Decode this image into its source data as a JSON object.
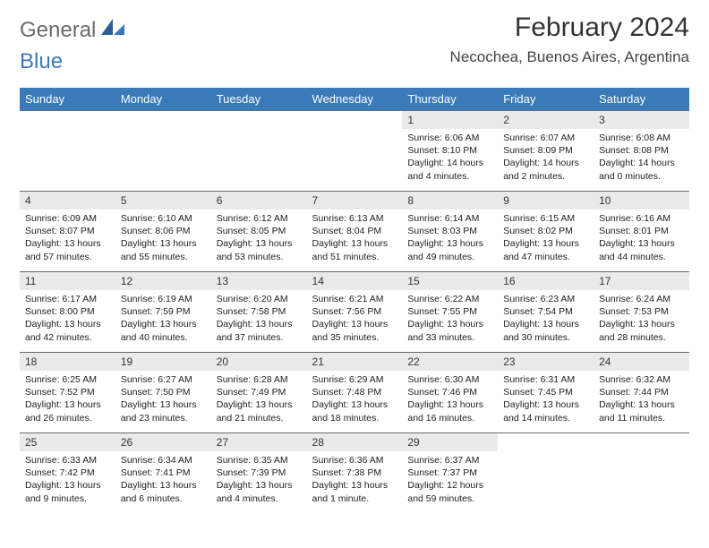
{
  "brand": {
    "part1": "General",
    "part2": "Blue"
  },
  "title": "February 2024",
  "location": "Necochea, Buenos Aires, Argentina",
  "headers": [
    "Sunday",
    "Monday",
    "Tuesday",
    "Wednesday",
    "Thursday",
    "Friday",
    "Saturday"
  ],
  "colors": {
    "header_bg": "#3a7ab8",
    "daynum_bg": "#eaeaea",
    "line": "#6b6b6b"
  },
  "weeks": [
    [
      null,
      null,
      null,
      null,
      {
        "n": "1",
        "sr": "Sunrise: 6:06 AM",
        "ss": "Sunset: 8:10 PM",
        "dl": "Daylight: 14 hours and 4 minutes."
      },
      {
        "n": "2",
        "sr": "Sunrise: 6:07 AM",
        "ss": "Sunset: 8:09 PM",
        "dl": "Daylight: 14 hours and 2 minutes."
      },
      {
        "n": "3",
        "sr": "Sunrise: 6:08 AM",
        "ss": "Sunset: 8:08 PM",
        "dl": "Daylight: 14 hours and 0 minutes."
      }
    ],
    [
      {
        "n": "4",
        "sr": "Sunrise: 6:09 AM",
        "ss": "Sunset: 8:07 PM",
        "dl": "Daylight: 13 hours and 57 minutes."
      },
      {
        "n": "5",
        "sr": "Sunrise: 6:10 AM",
        "ss": "Sunset: 8:06 PM",
        "dl": "Daylight: 13 hours and 55 minutes."
      },
      {
        "n": "6",
        "sr": "Sunrise: 6:12 AM",
        "ss": "Sunset: 8:05 PM",
        "dl": "Daylight: 13 hours and 53 minutes."
      },
      {
        "n": "7",
        "sr": "Sunrise: 6:13 AM",
        "ss": "Sunset: 8:04 PM",
        "dl": "Daylight: 13 hours and 51 minutes."
      },
      {
        "n": "8",
        "sr": "Sunrise: 6:14 AM",
        "ss": "Sunset: 8:03 PM",
        "dl": "Daylight: 13 hours and 49 minutes."
      },
      {
        "n": "9",
        "sr": "Sunrise: 6:15 AM",
        "ss": "Sunset: 8:02 PM",
        "dl": "Daylight: 13 hours and 47 minutes."
      },
      {
        "n": "10",
        "sr": "Sunrise: 6:16 AM",
        "ss": "Sunset: 8:01 PM",
        "dl": "Daylight: 13 hours and 44 minutes."
      }
    ],
    [
      {
        "n": "11",
        "sr": "Sunrise: 6:17 AM",
        "ss": "Sunset: 8:00 PM",
        "dl": "Daylight: 13 hours and 42 minutes."
      },
      {
        "n": "12",
        "sr": "Sunrise: 6:19 AM",
        "ss": "Sunset: 7:59 PM",
        "dl": "Daylight: 13 hours and 40 minutes."
      },
      {
        "n": "13",
        "sr": "Sunrise: 6:20 AM",
        "ss": "Sunset: 7:58 PM",
        "dl": "Daylight: 13 hours and 37 minutes."
      },
      {
        "n": "14",
        "sr": "Sunrise: 6:21 AM",
        "ss": "Sunset: 7:56 PM",
        "dl": "Daylight: 13 hours and 35 minutes."
      },
      {
        "n": "15",
        "sr": "Sunrise: 6:22 AM",
        "ss": "Sunset: 7:55 PM",
        "dl": "Daylight: 13 hours and 33 minutes."
      },
      {
        "n": "16",
        "sr": "Sunrise: 6:23 AM",
        "ss": "Sunset: 7:54 PM",
        "dl": "Daylight: 13 hours and 30 minutes."
      },
      {
        "n": "17",
        "sr": "Sunrise: 6:24 AM",
        "ss": "Sunset: 7:53 PM",
        "dl": "Daylight: 13 hours and 28 minutes."
      }
    ],
    [
      {
        "n": "18",
        "sr": "Sunrise: 6:25 AM",
        "ss": "Sunset: 7:52 PM",
        "dl": "Daylight: 13 hours and 26 minutes."
      },
      {
        "n": "19",
        "sr": "Sunrise: 6:27 AM",
        "ss": "Sunset: 7:50 PM",
        "dl": "Daylight: 13 hours and 23 minutes."
      },
      {
        "n": "20",
        "sr": "Sunrise: 6:28 AM",
        "ss": "Sunset: 7:49 PM",
        "dl": "Daylight: 13 hours and 21 minutes."
      },
      {
        "n": "21",
        "sr": "Sunrise: 6:29 AM",
        "ss": "Sunset: 7:48 PM",
        "dl": "Daylight: 13 hours and 18 minutes."
      },
      {
        "n": "22",
        "sr": "Sunrise: 6:30 AM",
        "ss": "Sunset: 7:46 PM",
        "dl": "Daylight: 13 hours and 16 minutes."
      },
      {
        "n": "23",
        "sr": "Sunrise: 6:31 AM",
        "ss": "Sunset: 7:45 PM",
        "dl": "Daylight: 13 hours and 14 minutes."
      },
      {
        "n": "24",
        "sr": "Sunrise: 6:32 AM",
        "ss": "Sunset: 7:44 PM",
        "dl": "Daylight: 13 hours and 11 minutes."
      }
    ],
    [
      {
        "n": "25",
        "sr": "Sunrise: 6:33 AM",
        "ss": "Sunset: 7:42 PM",
        "dl": "Daylight: 13 hours and 9 minutes."
      },
      {
        "n": "26",
        "sr": "Sunrise: 6:34 AM",
        "ss": "Sunset: 7:41 PM",
        "dl": "Daylight: 13 hours and 6 minutes."
      },
      {
        "n": "27",
        "sr": "Sunrise: 6:35 AM",
        "ss": "Sunset: 7:39 PM",
        "dl": "Daylight: 13 hours and 4 minutes."
      },
      {
        "n": "28",
        "sr": "Sunrise: 6:36 AM",
        "ss": "Sunset: 7:38 PM",
        "dl": "Daylight: 13 hours and 1 minute."
      },
      {
        "n": "29",
        "sr": "Sunrise: 6:37 AM",
        "ss": "Sunset: 7:37 PM",
        "dl": "Daylight: 12 hours and 59 minutes."
      },
      null,
      null
    ]
  ]
}
